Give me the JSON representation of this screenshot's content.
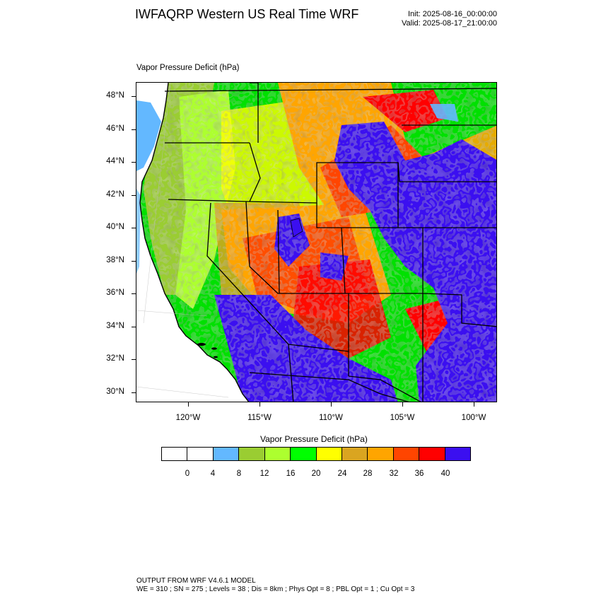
{
  "header": {
    "title": "IWFAQRP Western US Real Time WRF",
    "init": "Init: 2025-08-16_00:00:00",
    "valid": "Valid: 2025-08-17_21:00:00"
  },
  "map": {
    "label": "Vapor Pressure Deficit   (hPa)",
    "lat_labels": [
      "48°N",
      "46°N",
      "44°N",
      "42°N",
      "40°N",
      "38°N",
      "36°N",
      "34°N",
      "32°N",
      "30°N"
    ],
    "lon_labels": [
      "120°W",
      "115°W",
      "110°W",
      "105°W",
      "100°W"
    ]
  },
  "legend": {
    "title": "Vapor Pressure Deficit  (hPa)",
    "labels": [
      "0",
      "4",
      "8",
      "12",
      "16",
      "20",
      "24",
      "28",
      "32",
      "36",
      "40"
    ],
    "colors": [
      "#ffffff",
      "#ffffff",
      "#63b8ff",
      "#9acd32",
      "#adff2f",
      "#00ff00",
      "#ffff00",
      "#daa520",
      "#ffa500",
      "#ff4500",
      "#ff0000",
      "#3b0ff0"
    ]
  },
  "footer": {
    "line1": "OUTPUT FROM WRF V4.6.1 MODEL",
    "line2": "WE = 310 ; SN = 275 ; Levels = 38 ; Dis = 8km ; Phys Opt = 8 ; PBL Opt = 1 ; Cu Opt = 3"
  }
}
